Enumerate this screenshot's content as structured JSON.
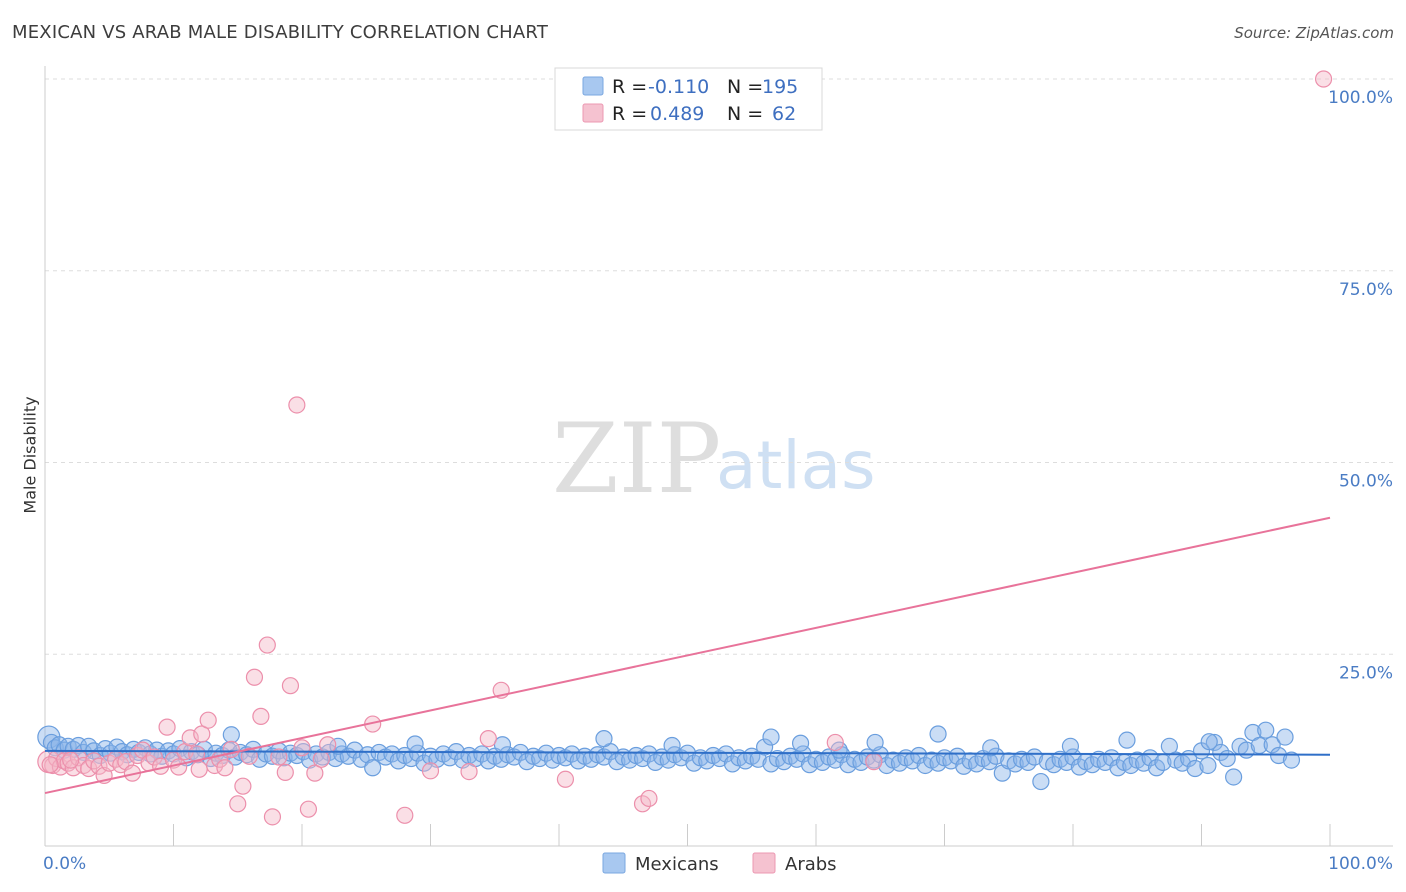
{
  "title": "MEXICAN VS ARAB MALE DISABILITY CORRELATION CHART",
  "source": "Source: ZipAtlas.com",
  "watermark": {
    "zip": "ZIP",
    "atlas": "atlas"
  },
  "legend": {
    "rows": [
      {
        "r_label": "R = ",
        "r_value": "-0.110",
        "n_label": "N = ",
        "n_value": "195",
        "color": "#a8c8f0"
      },
      {
        "r_label": "R = ",
        "r_value": "0.489",
        "n_label": "N = ",
        "n_value": "62",
        "color": "#f5b8c8"
      }
    ]
  },
  "bottom_legend": [
    {
      "label": "Mexicans",
      "color": "#a8c8f0"
    },
    {
      "label": "Arabs",
      "color": "#f5b8c8"
    }
  ],
  "chart_data": {
    "type": "scatter",
    "title": "MEXICAN VS ARAB MALE DISABILITY CORRELATION CHART",
    "xlabel": "",
    "ylabel": "Male Disability",
    "xlim": [
      0,
      100
    ],
    "ylim": [
      0,
      100
    ],
    "x_ticks": [
      "0.0%",
      "100.0%"
    ],
    "y_ticks": [
      {
        "value": 100,
        "label": "100.0%"
      },
      {
        "value": 75,
        "label": "75.0%"
      },
      {
        "value": 50,
        "label": "50.0%"
      },
      {
        "value": 25,
        "label": "25.0%"
      }
    ],
    "grid": true,
    "series": [
      {
        "name": "Mexicans",
        "color": "#8ab4e8",
        "stroke": "#6a9ede",
        "trend": {
          "x": [
            0,
            100
          ],
          "y": [
            12.4,
            11.9
          ],
          "color": "#2f6fc8"
        },
        "points": [
          [
            0.3,
            14.2
          ],
          [
            0.5,
            13.5
          ],
          [
            0.8,
            12.8
          ],
          [
            1.1,
            13.2
          ],
          [
            1.5,
            12.5
          ],
          [
            1.8,
            13.0
          ],
          [
            2.2,
            12.6
          ],
          [
            2.6,
            13.1
          ],
          [
            3.0,
            12.2
          ],
          [
            3.4,
            13.0
          ],
          [
            3.8,
            12.4
          ],
          [
            4.3,
            11.8
          ],
          [
            4.7,
            12.7
          ],
          [
            5.1,
            12.1
          ],
          [
            5.6,
            12.9
          ],
          [
            6.0,
            12.3
          ],
          [
            6.4,
            11.9
          ],
          [
            6.9,
            12.6
          ],
          [
            7.3,
            12.2
          ],
          [
            7.8,
            12.8
          ],
          [
            8.2,
            12.0
          ],
          [
            8.7,
            12.5
          ],
          [
            9.1,
            11.7
          ],
          [
            9.6,
            12.4
          ],
          [
            10.0,
            12.0
          ],
          [
            10.5,
            12.7
          ],
          [
            11.0,
            11.5
          ],
          [
            11.4,
            12.3
          ],
          [
            11.9,
            11.9
          ],
          [
            12.4,
            12.6
          ],
          [
            12.9,
            11.4
          ],
          [
            13.3,
            12.1
          ],
          [
            13.8,
            11.8
          ],
          [
            14.3,
            12.5
          ],
          [
            14.8,
            11.6
          ],
          [
            15.2,
            12.2
          ],
          [
            15.7,
            11.9
          ],
          [
            16.2,
            12.6
          ],
          [
            16.7,
            11.3
          ],
          [
            17.2,
            12.0
          ],
          [
            17.7,
            11.7
          ],
          [
            18.2,
            12.4
          ],
          [
            18.6,
            11.5
          ],
          [
            19.1,
            12.1
          ],
          [
            19.6,
            11.8
          ],
          [
            20.1,
            12.3
          ],
          [
            20.6,
            11.2
          ],
          [
            21.1,
            12.0
          ],
          [
            21.6,
            11.6
          ],
          [
            22.1,
            12.2
          ],
          [
            22.6,
            11.4
          ],
          [
            23.1,
            12.0
          ],
          [
            23.6,
            11.7
          ],
          [
            24.1,
            12.5
          ],
          [
            24.6,
            11.3
          ],
          [
            25.1,
            11.9
          ],
          [
            25.5,
            10.2
          ],
          [
            26.0,
            12.2
          ],
          [
            26.5,
            11.6
          ],
          [
            27.0,
            12.0
          ],
          [
            27.5,
            11.1
          ],
          [
            28.0,
            11.8
          ],
          [
            28.5,
            11.4
          ],
          [
            29.0,
            12.1
          ],
          [
            29.5,
            10.8
          ],
          [
            30.0,
            11.7
          ],
          [
            30.5,
            11.3
          ],
          [
            31.0,
            12.0
          ],
          [
            31.5,
            11.5
          ],
          [
            32.0,
            12.3
          ],
          [
            32.5,
            11.2
          ],
          [
            33.0,
            11.8
          ],
          [
            33.5,
            11.4
          ],
          [
            34.0,
            12.0
          ],
          [
            34.5,
            11.1
          ],
          [
            35.0,
            11.7
          ],
          [
            35.5,
            11.3
          ],
          [
            36.0,
            11.9
          ],
          [
            36.5,
            11.6
          ],
          [
            37.0,
            12.2
          ],
          [
            37.5,
            11.0
          ],
          [
            38.0,
            11.7
          ],
          [
            38.5,
            11.4
          ],
          [
            39.0,
            12.1
          ],
          [
            39.5,
            11.2
          ],
          [
            40.0,
            11.8
          ],
          [
            40.5,
            11.5
          ],
          [
            41.0,
            12.0
          ],
          [
            41.5,
            11.1
          ],
          [
            42.0,
            11.7
          ],
          [
            42.5,
            11.3
          ],
          [
            43.0,
            11.9
          ],
          [
            43.5,
            11.6
          ],
          [
            44.0,
            12.3
          ],
          [
            44.5,
            11.0
          ],
          [
            45.0,
            11.6
          ],
          [
            45.5,
            11.2
          ],
          [
            46.0,
            11.8
          ],
          [
            46.5,
            11.4
          ],
          [
            47.0,
            12.0
          ],
          [
            47.5,
            10.9
          ],
          [
            48.0,
            11.6
          ],
          [
            48.5,
            11.2
          ],
          [
            49.0,
            11.9
          ],
          [
            49.5,
            11.5
          ],
          [
            50.0,
            12.1
          ],
          [
            50.5,
            10.8
          ],
          [
            51.0,
            11.5
          ],
          [
            51.5,
            11.1
          ],
          [
            52.0,
            11.8
          ],
          [
            52.5,
            11.4
          ],
          [
            53.0,
            12.0
          ],
          [
            53.5,
            10.7
          ],
          [
            54.0,
            11.5
          ],
          [
            54.5,
            11.1
          ],
          [
            55.0,
            11.7
          ],
          [
            55.5,
            11.3
          ],
          [
            56.0,
            12.9
          ],
          [
            56.5,
            10.7
          ],
          [
            57.0,
            11.4
          ],
          [
            57.5,
            11.0
          ],
          [
            58.0,
            11.7
          ],
          [
            58.5,
            11.3
          ],
          [
            59.0,
            12.0
          ],
          [
            59.5,
            10.6
          ],
          [
            60.0,
            11.3
          ],
          [
            60.5,
            10.9
          ],
          [
            61.0,
            11.6
          ],
          [
            61.5,
            11.2
          ],
          [
            62.0,
            11.9
          ],
          [
            62.5,
            10.6
          ],
          [
            63.0,
            11.3
          ],
          [
            63.5,
            10.9
          ],
          [
            64.0,
            11.6
          ],
          [
            64.5,
            11.2
          ],
          [
            65.0,
            11.9
          ],
          [
            65.5,
            10.5
          ],
          [
            66.0,
            11.2
          ],
          [
            66.5,
            10.8
          ],
          [
            67.0,
            11.5
          ],
          [
            67.5,
            11.1
          ],
          [
            68.0,
            11.8
          ],
          [
            68.5,
            10.5
          ],
          [
            69.0,
            11.2
          ],
          [
            69.5,
            10.8
          ],
          [
            70.0,
            11.5
          ],
          [
            70.5,
            11.1
          ],
          [
            71.0,
            11.7
          ],
          [
            71.5,
            10.4
          ],
          [
            72.0,
            11.1
          ],
          [
            72.5,
            10.7
          ],
          [
            73.0,
            11.4
          ],
          [
            73.5,
            11.0
          ],
          [
            74.0,
            11.7
          ],
          [
            74.5,
            9.5
          ],
          [
            75.0,
            11.1
          ],
          [
            75.5,
            10.7
          ],
          [
            76.0,
            11.3
          ],
          [
            76.5,
            10.9
          ],
          [
            77.0,
            11.6
          ],
          [
            77.5,
            8.4
          ],
          [
            78.0,
            11.0
          ],
          [
            78.5,
            10.6
          ],
          [
            79.0,
            11.3
          ],
          [
            79.5,
            10.9
          ],
          [
            80.0,
            11.6
          ],
          [
            80.5,
            10.3
          ],
          [
            81.0,
            11.0
          ],
          [
            81.5,
            10.6
          ],
          [
            82.0,
            11.3
          ],
          [
            82.5,
            10.9
          ],
          [
            83.0,
            11.5
          ],
          [
            83.5,
            10.2
          ],
          [
            84.0,
            10.9
          ],
          [
            84.5,
            10.5
          ],
          [
            85.0,
            11.2
          ],
          [
            85.5,
            10.8
          ],
          [
            86.0,
            11.5
          ],
          [
            86.5,
            10.2
          ],
          [
            87.0,
            10.9
          ],
          [
            87.5,
            13.0
          ],
          [
            88.0,
            11.2
          ],
          [
            88.5,
            10.8
          ],
          [
            89.0,
            11.4
          ],
          [
            89.5,
            10.1
          ],
          [
            90.0,
            12.4
          ],
          [
            90.5,
            10.5
          ],
          [
            91.0,
            13.5
          ],
          [
            91.5,
            12.2
          ],
          [
            92.0,
            11.4
          ],
          [
            92.5,
            9.0
          ],
          [
            93.0,
            13.0
          ],
          [
            93.5,
            12.5
          ],
          [
            94.0,
            14.8
          ],
          [
            94.5,
            13.1
          ],
          [
            95.0,
            15.1
          ],
          [
            95.5,
            13.2
          ],
          [
            96.0,
            11.8
          ],
          [
            96.5,
            14.2
          ],
          [
            97.0,
            11.2
          ],
          [
            14.5,
            14.5
          ],
          [
            43.5,
            14.0
          ],
          [
            56.5,
            14.2
          ],
          [
            69.5,
            14.6
          ],
          [
            84.2,
            13.8
          ],
          [
            79.8,
            13.0
          ],
          [
            64.6,
            13.5
          ],
          [
            58.8,
            13.4
          ],
          [
            48.8,
            13.1
          ],
          [
            35.6,
            13.2
          ],
          [
            22.8,
            13.0
          ],
          [
            28.8,
            13.3
          ],
          [
            90.6,
            13.6
          ],
          [
            73.6,
            12.8
          ],
          [
            61.8,
            12.5
          ]
        ]
      },
      {
        "name": "Arabs",
        "color": "#f5b8c8",
        "stroke": "#ec8fab",
        "trend": {
          "x": [
            0,
            100
          ],
          "y": [
            6.9,
            42.8
          ],
          "color": "#e8739a"
        },
        "points": [
          [
            0.3,
            11.0
          ],
          [
            0.6,
            10.5
          ],
          [
            0.9,
            11.4
          ],
          [
            1.2,
            10.3
          ],
          [
            1.5,
            11.1
          ],
          [
            1.8,
            10.8
          ],
          [
            2.2,
            10.2
          ],
          [
            2.6,
            11.5
          ],
          [
            3.0,
            10.5
          ],
          [
            3.4,
            10.1
          ],
          [
            3.8,
            11.1
          ],
          [
            4.2,
            10.4
          ],
          [
            4.6,
            9.2
          ],
          [
            5.0,
            10.8
          ],
          [
            5.5,
            11.3
          ],
          [
            5.9,
            10.6
          ],
          [
            6.3,
            11.0
          ],
          [
            6.8,
            9.5
          ],
          [
            7.2,
            11.8
          ],
          [
            7.6,
            12.5
          ],
          [
            8.1,
            10.8
          ],
          [
            8.5,
            11.6
          ],
          [
            9.0,
            10.4
          ],
          [
            9.5,
            15.5
          ],
          [
            10.0,
            11.2
          ],
          [
            10.4,
            10.3
          ],
          [
            10.9,
            12.3
          ],
          [
            11.3,
            14.1
          ],
          [
            11.8,
            12.0
          ],
          [
            12.2,
            14.6
          ],
          [
            12.7,
            16.4
          ],
          [
            13.2,
            10.5
          ],
          [
            13.6,
            11.3
          ],
          [
            14.0,
            10.2
          ],
          [
            14.5,
            12.6
          ],
          [
            15.0,
            5.5
          ],
          [
            15.4,
            7.8
          ],
          [
            15.9,
            11.7
          ],
          [
            16.3,
            22.0
          ],
          [
            16.8,
            16.9
          ],
          [
            17.3,
            26.2
          ],
          [
            17.7,
            3.8
          ],
          [
            18.2,
            11.6
          ],
          [
            18.7,
            9.6
          ],
          [
            19.1,
            20.9
          ],
          [
            19.6,
            57.5
          ],
          [
            20.0,
            12.8
          ],
          [
            20.5,
            4.8
          ],
          [
            21.0,
            9.5
          ],
          [
            21.5,
            11.3
          ],
          [
            22.0,
            13.2
          ],
          [
            25.5,
            15.9
          ],
          [
            28.0,
            4.0
          ],
          [
            30.0,
            9.8
          ],
          [
            33.0,
            9.7
          ],
          [
            34.5,
            14.0
          ],
          [
            35.5,
            20.3
          ],
          [
            40.5,
            8.7
          ],
          [
            46.5,
            5.5
          ],
          [
            47.0,
            6.2
          ],
          [
            61.5,
            13.5
          ],
          [
            64.5,
            11.0
          ],
          [
            12.0,
            10.0
          ],
          [
            2.0,
            11.2
          ],
          [
            0.4,
            10.6
          ],
          [
            99.5,
            100.0
          ]
        ]
      }
    ]
  }
}
